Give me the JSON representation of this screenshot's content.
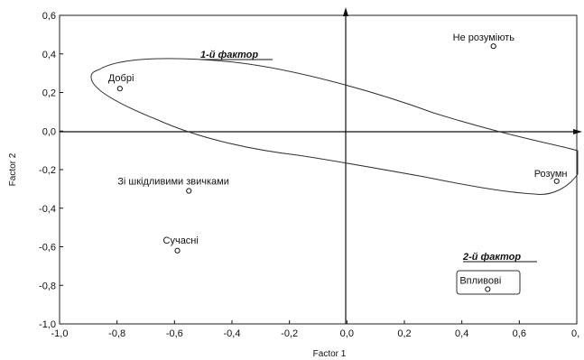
{
  "chart_data": {
    "type": "scatter",
    "xlabel": "Factor 1",
    "ylabel": "Factor 2",
    "xlim": [
      -1.0,
      0.8
    ],
    "ylim": [
      -1.0,
      0.6
    ],
    "x_ticks": [
      "-1,0",
      "-0,8",
      "-0,6",
      "-0,4",
      "-0,2",
      "0,0",
      "0,2",
      "0,4",
      "0,6",
      "0,"
    ],
    "y_ticks": [
      "0,6",
      "0,4",
      "0,2",
      "0,0",
      "-0,2",
      "-0,4",
      "-0,6",
      "-0,8",
      "-1,0"
    ],
    "points": [
      {
        "label": "Не розуміють",
        "x": 0.51,
        "y": 0.44
      },
      {
        "label": "Добрі",
        "x": -0.79,
        "y": 0.22
      },
      {
        "label": "Розумн",
        "x": 0.73,
        "y": -0.26
      },
      {
        "label": "Зі шкідливими звичками",
        "x": -0.55,
        "y": -0.31
      },
      {
        "label": "Сучасні",
        "x": -0.59,
        "y": -0.62
      },
      {
        "label": "Впливові",
        "x": 0.49,
        "y": -0.82
      }
    ],
    "annotations": [
      {
        "text": "1-й фактор"
      },
      {
        "text": "2-й фактор"
      }
    ]
  }
}
